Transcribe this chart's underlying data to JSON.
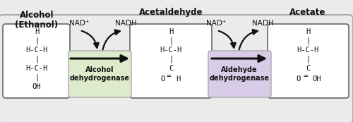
{
  "bg_color": "#ebebeb",
  "outer_box_facecolor": "#ebebeb",
  "outer_box_edgecolor": "#aaaaaa",
  "white_box_color": "#ffffff",
  "white_box_edge": "#666666",
  "green_box_color": "#deeacc",
  "green_box_edge": "#aaaaaa",
  "purple_box_color": "#d9cce8",
  "purple_box_edge": "#aaaaaa",
  "arrow_color": "#111111",
  "text_color": "#111111",
  "title_ethanol": "Alcohol\n(Ethanol)",
  "title_acetaldehyde": "Acetaldehyde",
  "title_acetate": "Acetate",
  "enzyme1": "Alcohol\ndehydrogenase",
  "enzyme2": "Aldehyde\ndehydrogenase",
  "nad_plus": "NAD⁺",
  "nadh": "NADH",
  "blue_arrow_face": "#c8e0f4",
  "blue_arrow_edge": "#88b8d8",
  "figsize": [
    5.0,
    1.73
  ],
  "dpi": 100
}
